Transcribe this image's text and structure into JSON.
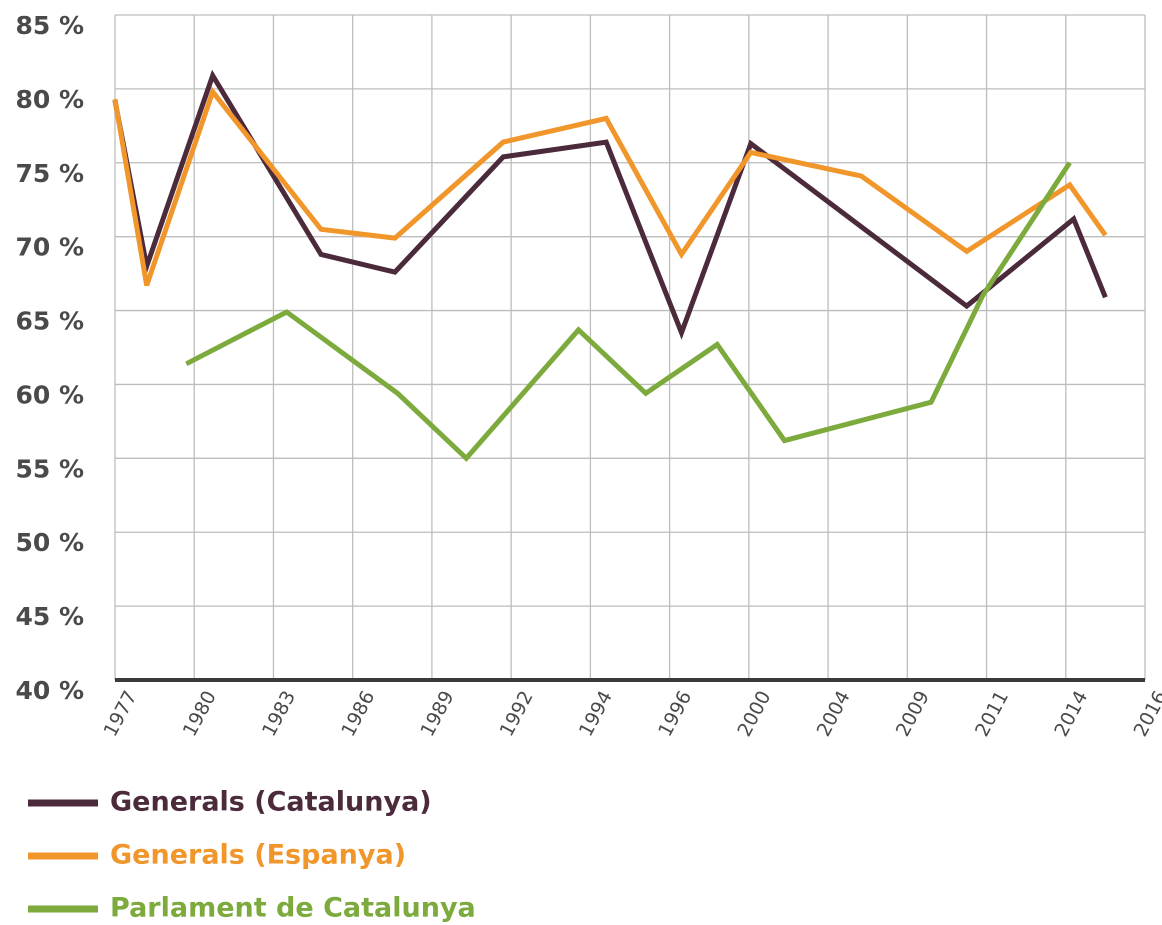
{
  "chart_data": {
    "type": "line",
    "xticks": [
      {
        "value": 1977,
        "label": "1977"
      },
      {
        "value": 1980,
        "label": "1980"
      },
      {
        "value": 1983,
        "label": "1983"
      },
      {
        "value": 1986,
        "label": "1986"
      },
      {
        "value": 1989,
        "label": "1989"
      },
      {
        "value": 1992,
        "label": "1992"
      },
      {
        "value": 1994,
        "label": "1994"
      },
      {
        "value": 1996,
        "label": "1996"
      },
      {
        "value": 2000,
        "label": "2000"
      },
      {
        "value": 2004,
        "label": "2004"
      },
      {
        "value": 2009,
        "label": "2009"
      },
      {
        "value": 2011,
        "label": "2011"
      },
      {
        "value": 2014,
        "label": "2014"
      },
      {
        "value": 2016,
        "label": "2016"
      }
    ],
    "ylim": [
      40,
      85
    ],
    "yticks": [
      {
        "value": 85,
        "label": "85 %"
      },
      {
        "value": 80,
        "label": "80 %"
      },
      {
        "value": 75,
        "label": "75 %"
      },
      {
        "value": 70,
        "label": "70 %"
      },
      {
        "value": 65,
        "label": "65 %"
      },
      {
        "value": 60,
        "label": "60 %"
      },
      {
        "value": 55,
        "label": "55 %"
      },
      {
        "value": 50,
        "label": "50 %"
      },
      {
        "value": 45,
        "label": "45 %"
      },
      {
        "value": 40,
        "label": "40 %"
      }
    ],
    "grid": true,
    "series": [
      {
        "name": "Generals (Catalunya)",
        "color": "#4b2a3b",
        "x": [
          1977,
          1978.2,
          1980.7,
          1984.8,
          1987.6,
          1991.7,
          1994.4,
          1996.6,
          2000.1,
          2010.5,
          2014.2,
          2015.0
        ],
        "values": [
          79.2,
          68.0,
          80.9,
          68.8,
          67.6,
          75.4,
          76.4,
          63.5,
          76.3,
          65.3,
          71.2,
          65.9
        ]
      },
      {
        "name": "Generals (Espanya)",
        "color": "#f0962a",
        "x": [
          1977,
          1978.2,
          1980.7,
          1984.8,
          1987.6,
          1991.7,
          1994.4,
          1996.6,
          2000.1,
          2006.1,
          2010.5,
          2014.1,
          2015.0
        ],
        "values": [
          79.3,
          66.7,
          79.8,
          70.5,
          69.9,
          76.4,
          78.0,
          68.8,
          75.7,
          74.1,
          69.0,
          73.5,
          70.1
        ]
      },
      {
        "name": "Parlament de Catalunya",
        "color": "#7daa3c",
        "x": [
          1979.7,
          1983.5,
          1987.7,
          1990.3,
          1993.7,
          1995.4,
          1998.4,
          2001.8,
          2009.6,
          2010.9,
          2014.1
        ],
        "values": [
          61.4,
          64.9,
          59.4,
          55.0,
          63.7,
          59.4,
          62.7,
          56.2,
          58.8,
          66.0,
          75.0
        ]
      }
    ]
  }
}
